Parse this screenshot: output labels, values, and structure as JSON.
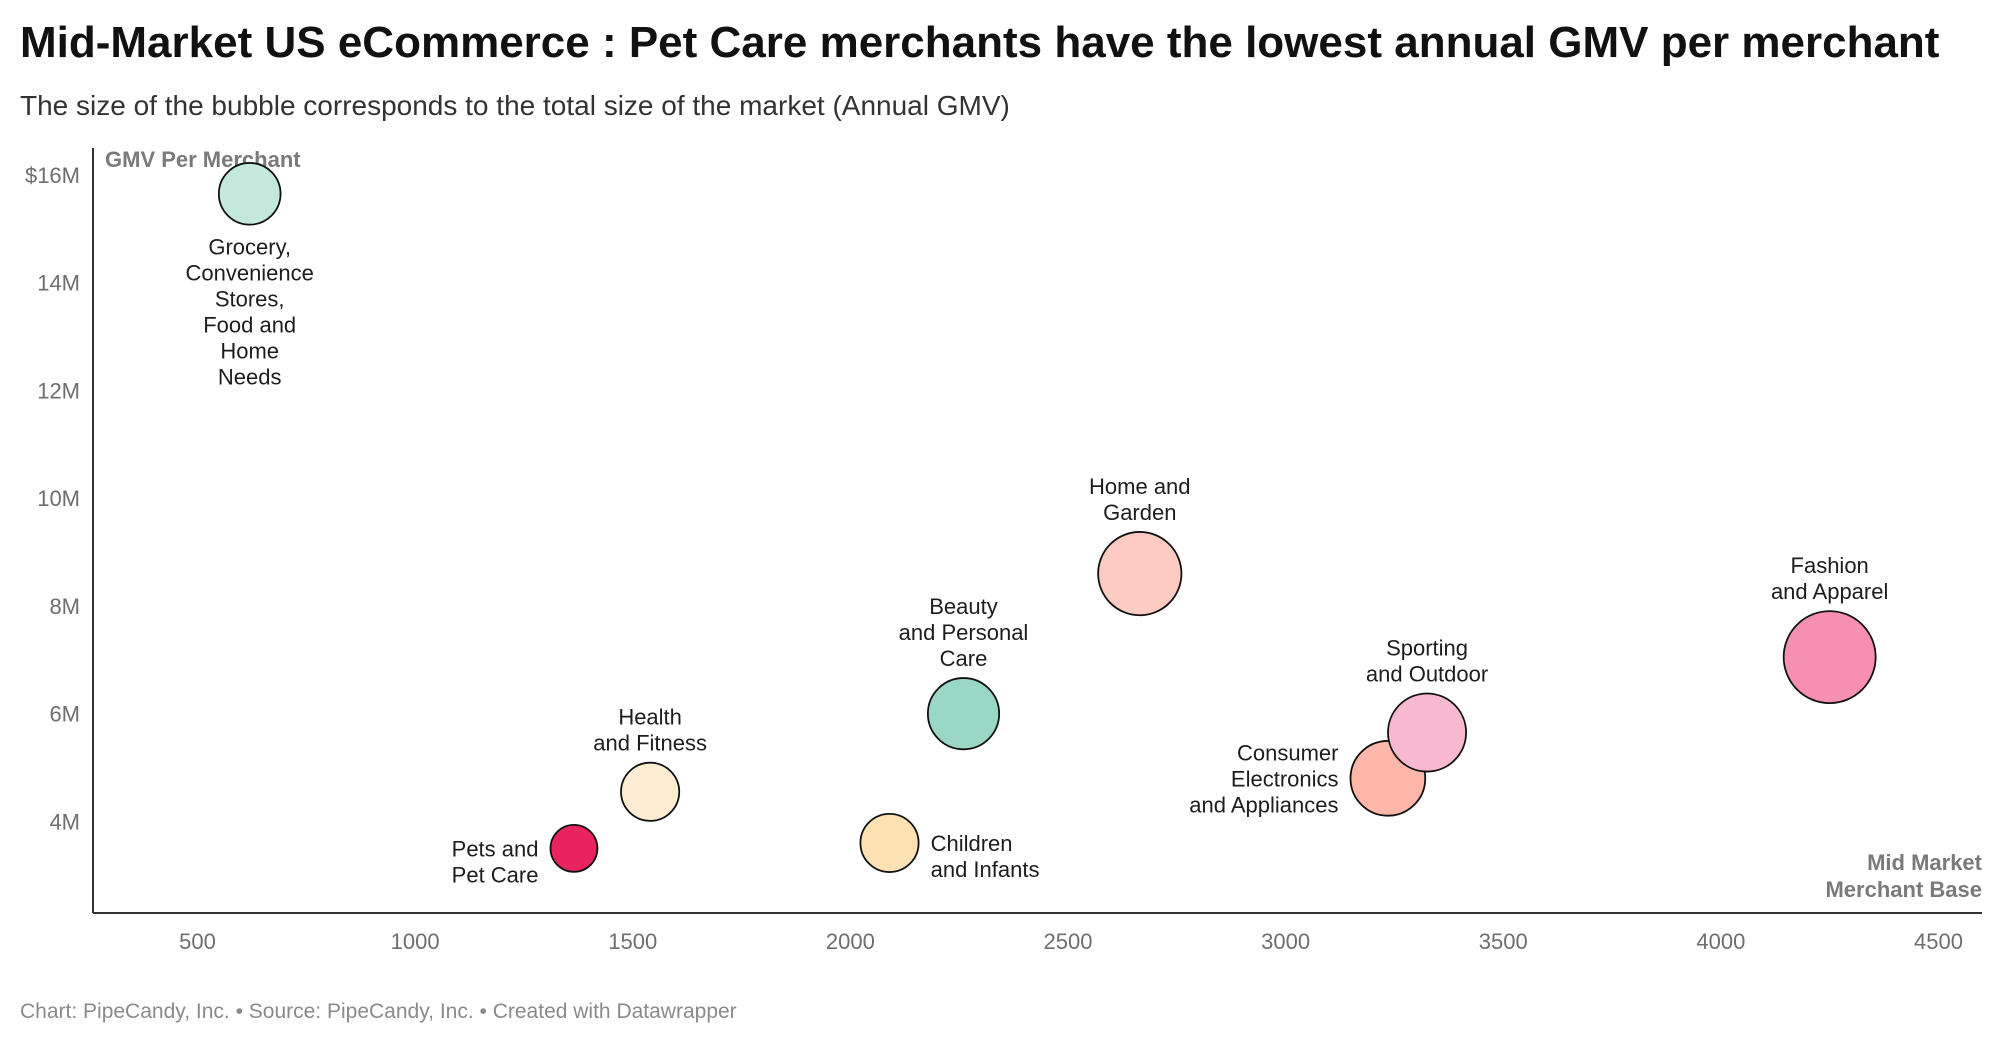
{
  "title": "Mid-Market US eCommerce : Pet Care merchants have the lowest annual GMV per merchant",
  "subtitle": "The size of the bubble corresponds to the total size of the market (Annual GMV)",
  "footer": {
    "chart_credit": "Chart: PipeCandy, Inc.",
    "source": "Source: PipeCandy, Inc.",
    "created_with": "Created with Datawrapper",
    "separator": "•"
  },
  "chart_data": {
    "type": "scatter",
    "subtype": "bubble",
    "title": "Mid-Market US eCommerce : Pet Care merchants have the lowest annual GMV per merchant",
    "subtitle": "The size of the bubble corresponds to the total size of the market (Annual GMV)",
    "xlabel": "Mid Market Merchant Base",
    "ylabel": "GMV Per Merchant",
    "xlim": [
      260,
      4600
    ],
    "ylim": [
      2.3,
      16.5
    ],
    "x_ticks": [
      500,
      1000,
      1500,
      2000,
      2500,
      3000,
      3500,
      4000,
      4500
    ],
    "x_tick_labels": [
      "500",
      "1000",
      "1500",
      "2000",
      "2500",
      "3000",
      "3500",
      "4000",
      "4500"
    ],
    "y_ticks": [
      4,
      6,
      8,
      10,
      12,
      14,
      16
    ],
    "y_tick_labels": [
      "4M",
      "6M",
      "8M",
      "10M",
      "12M",
      "14M",
      "$16M"
    ],
    "grid": false,
    "size_encoding": "Annual GMV",
    "points": [
      {
        "label": "Grocery, Convenience Stores, Food and Home Needs",
        "label_lines": [
          "Grocery,",
          "Convenience",
          "Stores,",
          "Food and",
          "Home",
          "Needs"
        ],
        "x": 620,
        "y": 15.65,
        "size": 0.45,
        "color": "#c3e8dc",
        "label_pos": "below"
      },
      {
        "label": "Pets and Pet Care",
        "label_lines": [
          "Pets and",
          "Pet Care"
        ],
        "x": 1365,
        "y": 3.5,
        "size": 0.26,
        "color": "#e8235e",
        "label_pos": "left"
      },
      {
        "label": "Health and Fitness",
        "label_lines": [
          "Health",
          "and Fitness"
        ],
        "x": 1540,
        "y": 4.55,
        "size": 0.4,
        "color": "#fdecd2",
        "label_pos": "above"
      },
      {
        "label": "Children and Infants",
        "label_lines": [
          "Children",
          "and Infants"
        ],
        "x": 2090,
        "y": 3.6,
        "size": 0.4,
        "color": "#fce1b3",
        "label_pos": "right"
      },
      {
        "label": "Beauty and Personal Care",
        "label_lines": [
          "Beauty",
          "and Personal",
          "Care"
        ],
        "x": 2260,
        "y": 6.0,
        "size": 0.6,
        "color": "#9ad7c4",
        "label_pos": "above"
      },
      {
        "label": "Home and Garden",
        "label_lines": [
          "Home and",
          "Garden"
        ],
        "x": 2665,
        "y": 8.6,
        "size": 0.82,
        "color": "#fdcbc2",
        "label_pos": "above"
      },
      {
        "label": "Consumer Electronics and Appliances",
        "label_lines": [
          "Consumer",
          "Electronics",
          "and Appliances"
        ],
        "x": 3235,
        "y": 4.8,
        "size": 0.66,
        "color": "#fdb7a9",
        "label_pos": "left"
      },
      {
        "label": "Sporting and Outdoor",
        "label_lines": [
          "Sporting",
          "and Outdoor"
        ],
        "x": 3325,
        "y": 5.65,
        "size": 0.72,
        "color": "#f8b8cf",
        "label_pos": "above"
      },
      {
        "label": "Fashion and Apparel",
        "label_lines": [
          "Fashion",
          "and Apparel"
        ],
        "x": 4250,
        "y": 7.05,
        "size": 1.0,
        "color": "#f78fb2",
        "label_pos": "above"
      }
    ]
  }
}
